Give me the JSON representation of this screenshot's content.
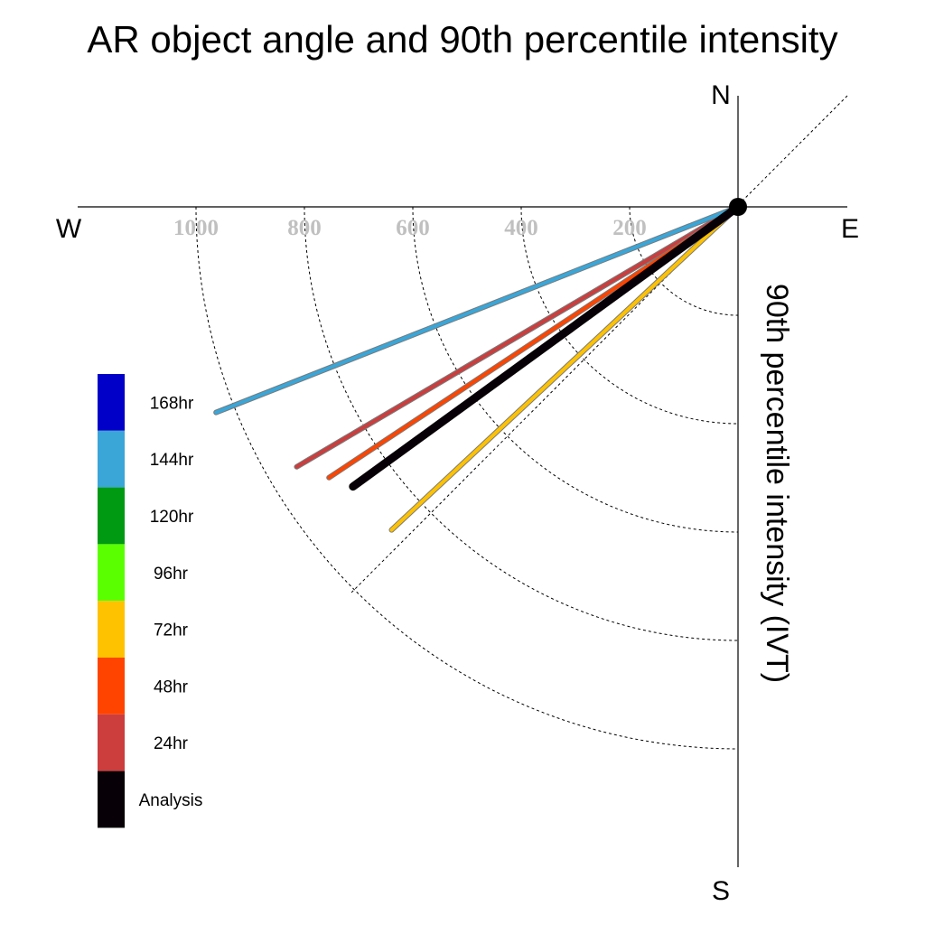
{
  "chart_data": {
    "type": "polar-vector",
    "title": "AR object angle and 90th percentile intensity",
    "radial_label": "90th percentile intensity (IVT)",
    "compass": {
      "north": "N",
      "south": "S",
      "east": "E",
      "west": "W"
    },
    "radial_ticks": [
      200,
      400,
      600,
      800,
      1000
    ],
    "tick_labels": [
      "200",
      "400",
      "600",
      "800",
      "1000"
    ],
    "grid": "dashed quarter-circle rings and 45° guide line",
    "legend_placement": "left",
    "series": [
      {
        "name": "168hr",
        "color": "#0000c8",
        "visible": false,
        "angle_below_west_deg": 21.5,
        "intensity": 1035
      },
      {
        "name": "144hr",
        "color": "#3aa6d8",
        "visible": true,
        "angle_below_west_deg": 21.5,
        "intensity": 1035
      },
      {
        "name": "120hr",
        "color": "#009a12",
        "visible": true,
        "angle_below_west_deg": 30.5,
        "intensity": 927
      },
      {
        "name": "96hr",
        "color": "#5aff00",
        "visible": true,
        "angle_below_west_deg": 30.5,
        "intensity": 822
      },
      {
        "name": "72hr",
        "color": "#ffc200",
        "visible": true,
        "angle_below_west_deg": 43.0,
        "intensity": 874
      },
      {
        "name": "48hr",
        "color": "#ff4400",
        "visible": true,
        "angle_below_west_deg": 33.5,
        "intensity": 905
      },
      {
        "name": "24hr",
        "color": "#cc3d3d",
        "visible": true,
        "angle_below_west_deg": 30.5,
        "intensity": 945
      },
      {
        "name": "Analysis",
        "color": "#070006",
        "visible": true,
        "angle_below_west_deg": 36.0,
        "intensity": 878
      }
    ]
  }
}
